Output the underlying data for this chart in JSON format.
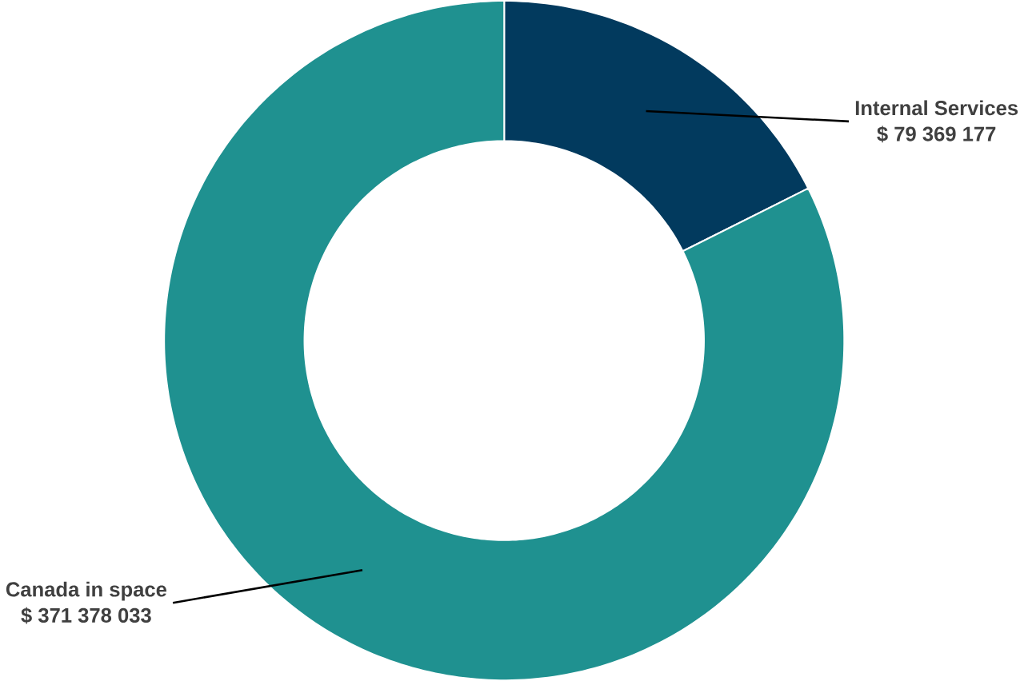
{
  "chart_data": {
    "type": "donut",
    "categories": [
      "Internal Services",
      "Canada in space"
    ],
    "values": [
      79369177,
      371378033
    ],
    "value_labels": [
      "$  79 369 177",
      "$  371 378 033"
    ],
    "colors": [
      "#023a5e",
      "#1f9190"
    ]
  }
}
